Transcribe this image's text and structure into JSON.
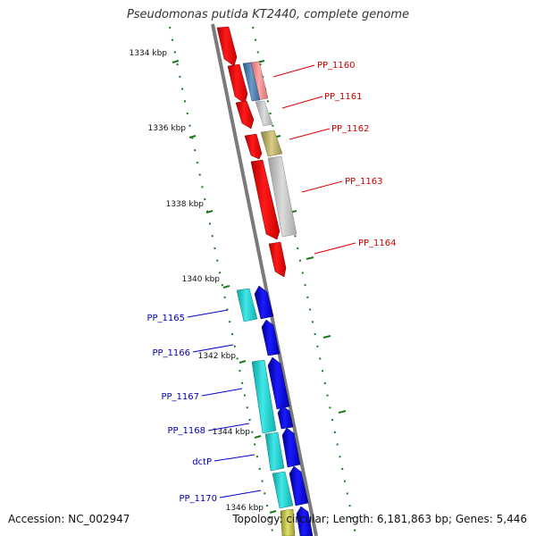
{
  "title": "Pseudomonas putida KT2440, complete genome",
  "accession": "Accession: NC_002947",
  "topology": "Topology: circular; Length: 6,181,863 bp; Genes: 5,446",
  "colors": {
    "forward_gene": "#ff0000",
    "reverse_gene": "#0000ee",
    "forward_label": "#cc0000",
    "reverse_label": "#0000bb",
    "tick": "#1a7a1a",
    "backbone": "#7a7a7a"
  },
  "tick_labels": [
    "1334 kbp",
    "1336 kbp",
    "1338 kbp",
    "1340 kbp",
    "1342 kbp",
    "1344 kbp",
    "1346 kbp"
  ],
  "genes": [
    {
      "label": "PP_1160",
      "strand": "+"
    },
    {
      "label": "PP_1161",
      "strand": "+"
    },
    {
      "label": "PP_1162",
      "strand": "+"
    },
    {
      "label": "PP_1163",
      "strand": "+"
    },
    {
      "label": "PP_1164",
      "strand": "+"
    },
    {
      "label": "PP_1165",
      "strand": "-"
    },
    {
      "label": "PP_1166",
      "strand": "-"
    },
    {
      "label": "PP_1167",
      "strand": "-"
    },
    {
      "label": "PP_1168",
      "strand": "-"
    },
    {
      "label": "dctP",
      "strand": "-"
    },
    {
      "label": "PP_1170",
      "strand": "-"
    }
  ]
}
